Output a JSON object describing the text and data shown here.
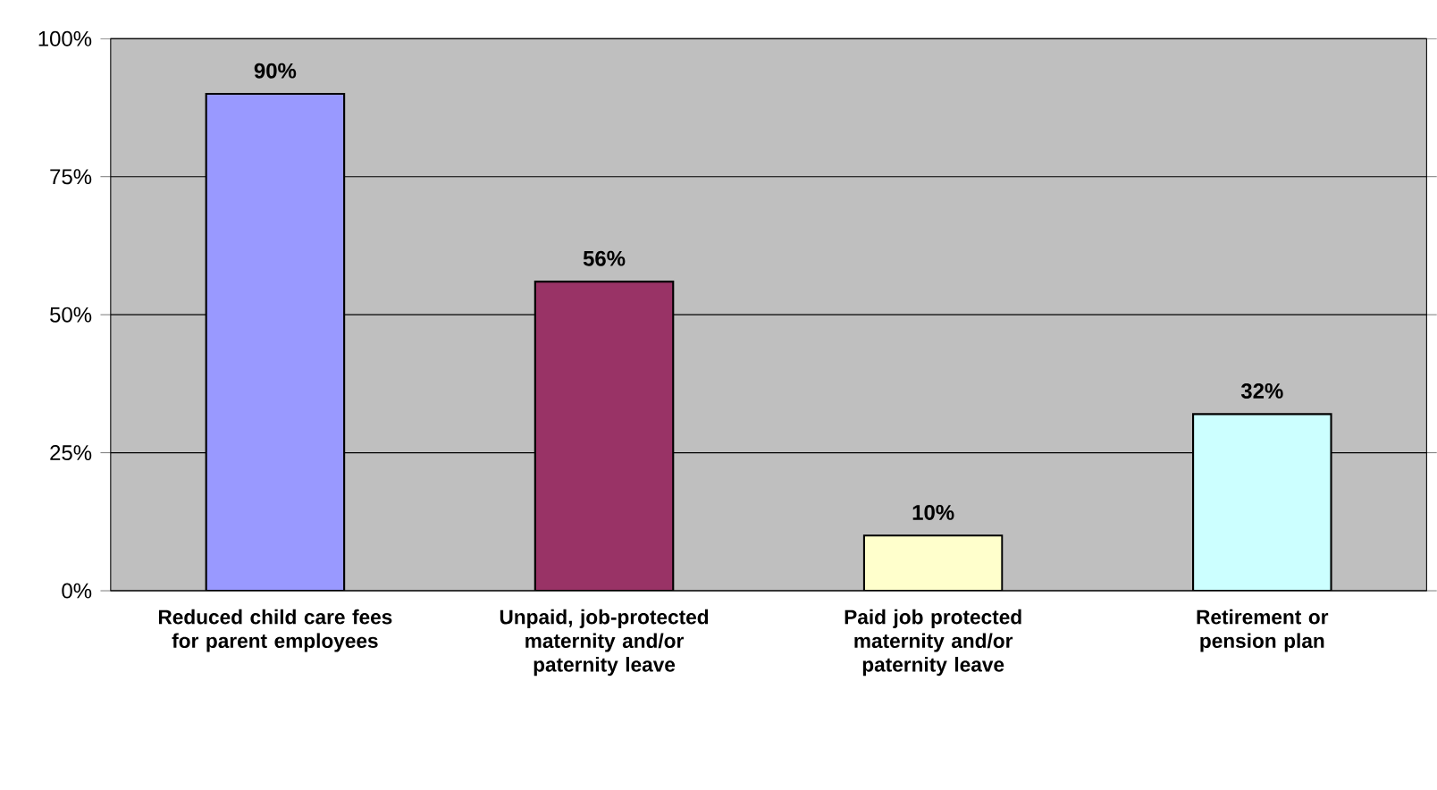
{
  "chart_data": {
    "type": "bar",
    "categories": [
      "Reduced child care fees for parent employees",
      "Unpaid, job-protected maternity and/or paternity leave",
      "Paid job protected maternity and/or paternity leave",
      "Retirement or pension plan"
    ],
    "values": [
      90,
      56,
      10,
      32
    ],
    "value_labels": [
      "90%",
      "56%",
      "10%",
      "32%"
    ],
    "colors": [
      "#9999ff",
      "#993366",
      "#ffffcc",
      "#ccffff"
    ],
    "ylim": [
      0,
      100
    ],
    "yticks": [
      {
        "value": 0,
        "label": "0%"
      },
      {
        "value": 25,
        "label": "25%"
      },
      {
        "value": 50,
        "label": "50%"
      },
      {
        "value": 75,
        "label": "75%"
      },
      {
        "value": 100,
        "label": "100%"
      }
    ],
    "grid": "y"
  }
}
